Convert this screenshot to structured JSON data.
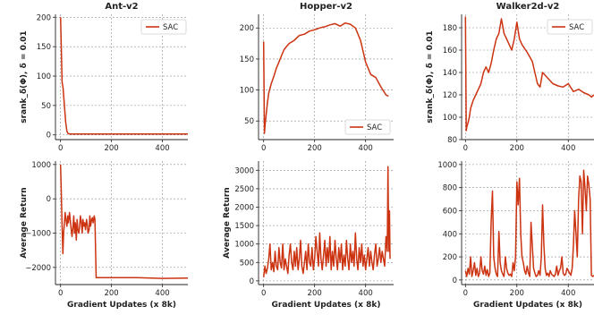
{
  "chart_data": [
    {
      "type": "line",
      "title": "Ant-v2",
      "xlabel": "",
      "ylabel": "srank_δ(Φ), δ = 0.01",
      "xlim": [
        -20,
        500
      ],
      "ylim": [
        -8,
        205
      ],
      "xticks": [
        "0",
        "200",
        "400"
      ],
      "xtick_values": [
        0,
        200,
        400
      ],
      "yticks": [
        "0",
        "50",
        "100",
        "150",
        "200"
      ],
      "ytick_values": [
        0,
        50,
        100,
        150,
        200
      ],
      "grid": true,
      "legend": "top-right",
      "series": [
        {
          "name": "SAC",
          "color": "#cc3311",
          "x": [
            0,
            3,
            6,
            10,
            15,
            20,
            25,
            30,
            40,
            60,
            100,
            200,
            300,
            400,
            500
          ],
          "y": [
            200,
            150,
            90,
            80,
            50,
            22,
            6,
            2,
            1.5,
            1.5,
            1.5,
            1.5,
            1.5,
            1.5,
            1.5
          ]
        }
      ]
    },
    {
      "type": "line",
      "title": "Hopper-v2",
      "xlabel": "",
      "ylabel": "",
      "xlim": [
        -20,
        510
      ],
      "ylim": [
        20,
        222
      ],
      "xticks": [
        "0",
        "200",
        "400"
      ],
      "xtick_values": [
        0,
        200,
        400
      ],
      "yticks": [
        "50",
        "100",
        "150",
        "200"
      ],
      "ytick_values": [
        50,
        100,
        150,
        200
      ],
      "grid": true,
      "legend": "bottom-right",
      "series": [
        {
          "name": "SAC",
          "color": "#cc3311",
          "x": [
            0,
            3,
            6,
            10,
            15,
            20,
            30,
            40,
            50,
            60,
            70,
            80,
            90,
            100,
            120,
            140,
            160,
            180,
            200,
            220,
            240,
            260,
            280,
            300,
            320,
            340,
            360,
            380,
            400,
            420,
            440,
            460,
            480,
            490
          ],
          "y": [
            178,
            30,
            45,
            60,
            80,
            95,
            110,
            122,
            135,
            145,
            155,
            165,
            170,
            175,
            180,
            188,
            190,
            195,
            197,
            200,
            202,
            205,
            207,
            203,
            208,
            206,
            200,
            180,
            145,
            125,
            120,
            105,
            92,
            90
          ]
        }
      ]
    },
    {
      "type": "line",
      "title": "Walker2d-v2",
      "xlabel": "",
      "ylabel": "srank_δ(Φ), δ = 0.01",
      "xlim": [
        -15,
        500
      ],
      "ylim": [
        80,
        192
      ],
      "xticks": [
        "0",
        "200",
        "400"
      ],
      "xtick_values": [
        0,
        200,
        400
      ],
      "yticks": [
        "80",
        "100",
        "120",
        "140",
        "160",
        "180"
      ],
      "ytick_values": [
        80,
        100,
        120,
        140,
        160,
        180
      ],
      "grid": true,
      "legend": "top-right",
      "series": [
        {
          "name": "SAC",
          "color": "#cc3311",
          "x": [
            0,
            3,
            6,
            10,
            15,
            20,
            30,
            40,
            50,
            60,
            70,
            80,
            90,
            100,
            110,
            120,
            130,
            140,
            150,
            160,
            170,
            180,
            190,
            200,
            210,
            220,
            240,
            260,
            280,
            290,
            300,
            320,
            340,
            360,
            380,
            400,
            420,
            440,
            460,
            480,
            490,
            500
          ],
          "y": [
            190,
            88,
            92,
            95,
            100,
            108,
            115,
            120,
            125,
            130,
            140,
            145,
            140,
            148,
            160,
            170,
            175,
            188,
            175,
            170,
            165,
            160,
            170,
            185,
            170,
            165,
            158,
            150,
            130,
            127,
            140,
            135,
            130,
            128,
            127,
            130,
            123,
            125,
            122,
            120,
            118,
            120
          ]
        }
      ]
    },
    {
      "type": "line",
      "title": "",
      "xlabel": "Gradient Updates (x 8k)",
      "ylabel": "Average Return",
      "xlim": [
        -20,
        500
      ],
      "ylim": [
        -2500,
        1100
      ],
      "xticks": [
        "0",
        "200",
        "400"
      ],
      "xtick_values": [
        0,
        200,
        400
      ],
      "yticks": [
        "−2000",
        "−1000",
        "0",
        "1000"
      ],
      "ytick_values": [
        -2000,
        -1000,
        0,
        1000
      ],
      "grid": true,
      "series": [
        {
          "name": "",
          "color": "#cc3311",
          "x": [
            0,
            3,
            6,
            9,
            12,
            15,
            18,
            21,
            25,
            28,
            31,
            35,
            38,
            42,
            45,
            49,
            52,
            55,
            58,
            62,
            65,
            68,
            72,
            75,
            78,
            82,
            85,
            88,
            92,
            95,
            98,
            102,
            105,
            108,
            112,
            115,
            118,
            122,
            125,
            128,
            132,
            135,
            140,
            160,
            200,
            300,
            400,
            500
          ],
          "y": [
            1000,
            200,
            -800,
            -1600,
            -1000,
            -700,
            -400,
            -600,
            -800,
            -500,
            -700,
            -400,
            -600,
            -900,
            -1100,
            -800,
            -500,
            -1000,
            -700,
            -1200,
            -600,
            -900,
            -1000,
            -800,
            -500,
            -700,
            -1000,
            -600,
            -800,
            -700,
            -900,
            -600,
            -750,
            -1000,
            -900,
            -500,
            -800,
            -600,
            -550,
            -700,
            -500,
            -600,
            -2300,
            -2300,
            -2300,
            -2300,
            -2320,
            -2310
          ]
        }
      ]
    },
    {
      "type": "line",
      "title": "",
      "xlabel": "Gradient Updates (x 8k)",
      "ylabel": "Average Return",
      "xlim": [
        -20,
        510
      ],
      "ylim": [
        -100,
        3250
      ],
      "xticks": [
        "0",
        "200",
        "400"
      ],
      "xtick_values": [
        0,
        200,
        400
      ],
      "yticks": [
        "0",
        "500",
        "1000",
        "1500",
        "2000",
        "2500",
        "3000"
      ],
      "ytick_values": [
        0,
        500,
        1000,
        1500,
        2000,
        2500,
        3000
      ],
      "grid": true,
      "series": [
        {
          "name": "",
          "color": "#cc3311",
          "x": [
            0,
            5,
            10,
            15,
            20,
            25,
            30,
            35,
            40,
            45,
            50,
            55,
            60,
            65,
            70,
            75,
            80,
            85,
            90,
            95,
            100,
            105,
            110,
            115,
            120,
            125,
            130,
            135,
            140,
            145,
            150,
            155,
            160,
            165,
            170,
            175,
            180,
            185,
            190,
            195,
            200,
            205,
            210,
            215,
            220,
            225,
            230,
            235,
            240,
            245,
            250,
            255,
            260,
            265,
            270,
            275,
            280,
            285,
            290,
            295,
            300,
            305,
            310,
            315,
            320,
            325,
            330,
            335,
            340,
            345,
            350,
            355,
            360,
            365,
            370,
            375,
            380,
            385,
            390,
            395,
            400,
            405,
            410,
            415,
            420,
            425,
            430,
            435,
            440,
            445,
            450,
            455,
            460,
            465,
            470,
            475,
            480,
            485,
            488,
            490,
            492,
            494,
            496
          ],
          "y": [
            100,
            400,
            200,
            350,
            600,
            1000,
            300,
            500,
            250,
            800,
            400,
            300,
            900,
            500,
            350,
            1000,
            300,
            600,
            400,
            200,
            700,
            1000,
            500,
            300,
            800,
            400,
            900,
            300,
            600,
            1100,
            400,
            200,
            500,
            800,
            300,
            1000,
            500,
            400,
            900,
            300,
            600,
            1200,
            800,
            400,
            1300,
            600,
            300,
            700,
            1100,
            400,
            900,
            500,
            1200,
            300,
            800,
            400,
            1100,
            600,
            300,
            900,
            500,
            1000,
            300,
            700,
            400,
            1100,
            600,
            300,
            1000,
            500,
            800,
            400,
            1300,
            600,
            300,
            900,
            500,
            1000,
            400,
            700,
            300,
            600,
            900,
            400,
            800,
            500,
            300,
            700,
            1000,
            400,
            600,
            900,
            500,
            800,
            600,
            400,
            1200,
            800,
            3100,
            1500,
            800,
            1900,
            600
          ]
        }
      ]
    },
    {
      "type": "line",
      "title": "",
      "xlabel": "Gradient Updates (x 8k)",
      "ylabel": "",
      "xlim": [
        -15,
        500
      ],
      "ylim": [
        -40,
        1030
      ],
      "xticks": [
        "0",
        "200",
        "400"
      ],
      "xtick_values": [
        0,
        200,
        400
      ],
      "yticks": [
        "0",
        "200",
        "400",
        "600",
        "800",
        "1000"
      ],
      "ytick_values": [
        0,
        200,
        400,
        600,
        800,
        1000
      ],
      "grid": true,
      "series": [
        {
          "name": "",
          "color": "#cc3311",
          "x": [
            0,
            5,
            10,
            15,
            20,
            25,
            30,
            35,
            40,
            45,
            50,
            55,
            60,
            65,
            70,
            75,
            80,
            85,
            90,
            95,
            100,
            105,
            110,
            115,
            120,
            125,
            130,
            135,
            140,
            145,
            150,
            155,
            160,
            165,
            170,
            175,
            180,
            185,
            190,
            195,
            200,
            205,
            210,
            215,
            220,
            225,
            230,
            235,
            240,
            245,
            250,
            255,
            260,
            265,
            270,
            275,
            280,
            285,
            290,
            295,
            300,
            305,
            310,
            315,
            320,
            325,
            330,
            335,
            340,
            345,
            350,
            355,
            360,
            365,
            370,
            375,
            380,
            385,
            390,
            395,
            400,
            405,
            410,
            415,
            420,
            425,
            430,
            435,
            440,
            445,
            450,
            455,
            460,
            465,
            470,
            475,
            480,
            485,
            490,
            495,
            500
          ],
          "y": [
            80,
            30,
            100,
            50,
            200,
            30,
            80,
            150,
            40,
            100,
            30,
            60,
            200,
            80,
            50,
            120,
            40,
            90,
            30,
            60,
            500,
            770,
            200,
            100,
            50,
            30,
            420,
            150,
            80,
            50,
            30,
            200,
            100,
            60,
            40,
            50,
            30,
            150,
            80,
            200,
            850,
            650,
            880,
            400,
            200,
            150,
            80,
            50,
            120,
            60,
            30,
            500,
            300,
            100,
            60,
            30,
            40,
            80,
            40,
            200,
            650,
            300,
            100,
            40,
            60,
            30,
            80,
            50,
            40,
            30,
            50,
            120,
            40,
            80,
            100,
            200,
            60,
            40,
            50,
            100,
            80,
            60,
            40,
            100,
            300,
            600,
            400,
            200,
            700,
            900,
            850,
            400,
            950,
            800,
            600,
            900,
            820,
            700,
            40,
            30,
            40
          ]
        }
      ]
    }
  ]
}
